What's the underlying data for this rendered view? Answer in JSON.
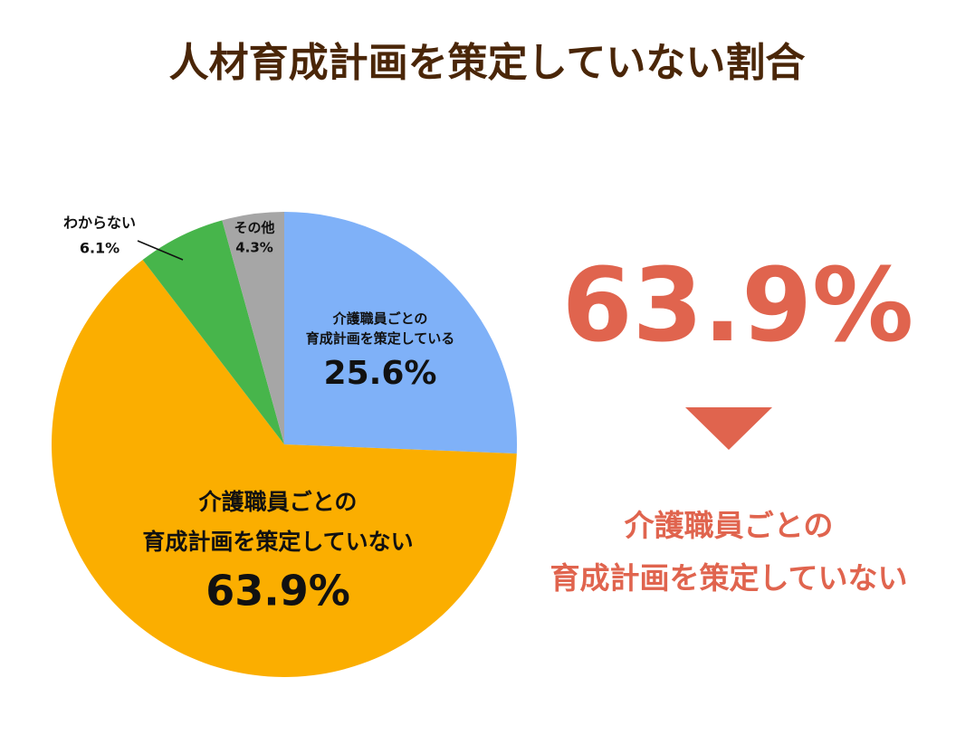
{
  "chart_data": {
    "type": "pie",
    "title": "人材育成計画を策定していない割合",
    "categories": [
      "介護職員ごとの\n育成計画を策定している",
      "介護職員ごとの\n育成計画を策定していない",
      "わからない",
      "その他"
    ],
    "values": [
      25.6,
      63.9,
      6.1,
      4.3
    ],
    "value_labels": [
      "25.6%",
      "63.9%",
      "6.1%",
      "4.3%"
    ],
    "colors": [
      "#7fb1f8",
      "#fbae00",
      "#47b54b",
      "#a6a6a6"
    ],
    "start": "top",
    "direction": "clockwise"
  }
}
